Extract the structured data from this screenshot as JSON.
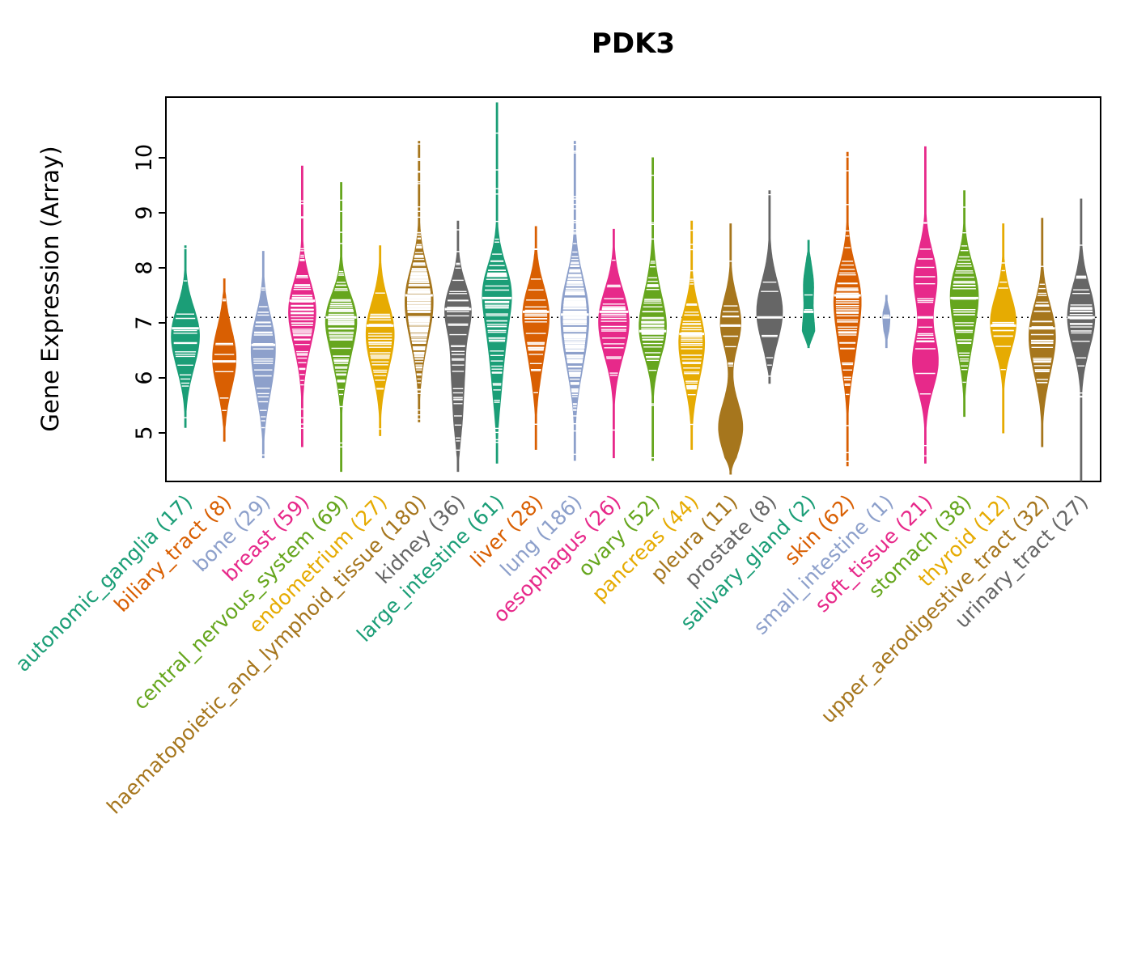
{
  "title": "PDK3",
  "y_axis": {
    "label": "Gene Expression (Array)",
    "ticks": [
      5,
      6,
      7,
      8,
      9,
      10
    ]
  },
  "chart_data": {
    "type": "violin",
    "title": "PDK3",
    "ylabel": "Gene Expression (Array)",
    "ylim": [
      4.1,
      11.1
    ],
    "yticks": [
      5,
      6,
      7,
      8,
      9,
      10
    ],
    "grid": false,
    "background": "#FFFFFF",
    "axis_color": "#000000",
    "data_line_color": "#FFFFFF",
    "reference_line": {
      "value": 7.1,
      "style": "dotted"
    },
    "palette": [
      "#1B9E77",
      "#D95F02",
      "#8DA0CB",
      "#E7298A",
      "#66A61E",
      "#E6AB02",
      "#A6761D",
      "#666666"
    ],
    "groups": [
      {
        "label": "autonomic_ganglia",
        "n": 17,
        "color": "#1B9E77",
        "min": 5.1,
        "max": 8.4,
        "median": 6.9,
        "bw": 0.45,
        "width": 0.72,
        "modes": [
          {
            "v": 6.9,
            "w": 1
          },
          {
            "v": 6.3,
            "w": 0.5
          }
        ]
      },
      {
        "label": "biliary_tract",
        "n": 8,
        "color": "#D95F02",
        "min": 4.85,
        "max": 7.8,
        "median": 6.3,
        "bw": 0.55,
        "width": 0.6,
        "modes": [
          {
            "v": 6.35,
            "w": 1
          }
        ]
      },
      {
        "label": "bone",
        "n": 29,
        "color": "#8DA0CB",
        "min": 4.55,
        "max": 8.3,
        "median": 6.6,
        "bw": 0.5,
        "width": 0.62,
        "modes": [
          {
            "v": 6.7,
            "w": 1
          },
          {
            "v": 5.9,
            "w": 0.6
          }
        ]
      },
      {
        "label": "breast",
        "n": 59,
        "color": "#E7298A",
        "min": 4.75,
        "max": 9.85,
        "median": 7.4,
        "bw": 0.5,
        "width": 0.7,
        "modes": [
          {
            "v": 7.3,
            "w": 1
          },
          {
            "v": 6.6,
            "w": 0.35
          }
        ]
      },
      {
        "label": "central_nervous_system",
        "n": 69,
        "color": "#66A61E",
        "min": 4.3,
        "max": 9.55,
        "median": 7.1,
        "bw": 0.45,
        "width": 0.8,
        "modes": [
          {
            "v": 7.1,
            "w": 1
          },
          {
            "v": 6.3,
            "w": 0.4
          }
        ]
      },
      {
        "label": "endometrium",
        "n": 27,
        "color": "#E6AB02",
        "min": 4.95,
        "max": 8.4,
        "median": 6.95,
        "bw": 0.5,
        "width": 0.72,
        "modes": [
          {
            "v": 6.95,
            "w": 1
          },
          {
            "v": 6.3,
            "w": 0.5
          }
        ]
      },
      {
        "label": "haematopoietic_and_lymphoid_tissue",
        "n": 180,
        "color": "#A6761D",
        "min": 5.2,
        "max": 10.3,
        "median": 7.5,
        "bw": 0.55,
        "width": 0.72,
        "modes": [
          {
            "v": 7.5,
            "w": 1
          },
          {
            "v": 6.7,
            "w": 0.4
          }
        ]
      },
      {
        "label": "kidney",
        "n": 36,
        "color": "#666666",
        "min": 4.3,
        "max": 8.85,
        "median": 7.25,
        "bw": 0.45,
        "width": 0.68,
        "modes": [
          {
            "v": 7.25,
            "w": 1
          },
          {
            "v": 6.2,
            "w": 0.45
          },
          {
            "v": 5.3,
            "w": 0.3
          }
        ]
      },
      {
        "label": "large_intestine",
        "n": 61,
        "color": "#1B9E77",
        "min": 4.45,
        "max": 11.0,
        "median": 7.45,
        "bw": 0.5,
        "width": 0.75,
        "modes": [
          {
            "v": 7.6,
            "w": 1
          },
          {
            "v": 6.7,
            "w": 0.5
          },
          {
            "v": 5.8,
            "w": 0.25
          }
        ]
      },
      {
        "label": "liver",
        "n": 28,
        "color": "#D95F02",
        "min": 4.7,
        "max": 8.75,
        "median": 7.2,
        "bw": 0.5,
        "width": 0.68,
        "modes": [
          {
            "v": 7.2,
            "w": 1
          },
          {
            "v": 6.3,
            "w": 0.4
          }
        ]
      },
      {
        "label": "lung",
        "n": 186,
        "color": "#8DA0CB",
        "min": 4.5,
        "max": 10.3,
        "median": 7.15,
        "bw": 0.6,
        "width": 0.72,
        "modes": [
          {
            "v": 7.3,
            "w": 1
          },
          {
            "v": 6.4,
            "w": 0.55
          }
        ]
      },
      {
        "label": "oesophagus",
        "n": 26,
        "color": "#E7298A",
        "min": 4.55,
        "max": 8.7,
        "median": 7.2,
        "bw": 0.5,
        "width": 0.78,
        "modes": [
          {
            "v": 7.2,
            "w": 1
          },
          {
            "v": 6.6,
            "w": 0.6
          }
        ]
      },
      {
        "label": "ovary",
        "n": 52,
        "color": "#66A61E",
        "min": 4.5,
        "max": 10.0,
        "median": 6.85,
        "bw": 0.5,
        "width": 0.7,
        "modes": [
          {
            "v": 6.85,
            "w": 1
          },
          {
            "v": 7.6,
            "w": 0.3
          }
        ]
      },
      {
        "label": "pancreas",
        "n": 44,
        "color": "#E6AB02",
        "min": 4.7,
        "max": 8.85,
        "median": 6.8,
        "bw": 0.5,
        "width": 0.66,
        "modes": [
          {
            "v": 6.8,
            "w": 1
          },
          {
            "v": 6.1,
            "w": 0.5
          }
        ]
      },
      {
        "label": "pleura",
        "n": 11,
        "color": "#A6761D",
        "min": 4.25,
        "max": 8.8,
        "median": 6.95,
        "bw": 0.45,
        "width": 0.62,
        "modes": [
          {
            "v": 7.0,
            "w": 0.85
          },
          {
            "v": 5.1,
            "w": 1
          }
        ]
      },
      {
        "label": "prostate",
        "n": 8,
        "color": "#666666",
        "min": 5.9,
        "max": 9.4,
        "median": 7.1,
        "bw": 0.55,
        "width": 0.66,
        "modes": [
          {
            "v": 7.2,
            "w": 1
          }
        ]
      },
      {
        "label": "salivary_gland",
        "n": 2,
        "color": "#1B9E77",
        "min": 6.55,
        "max": 8.5,
        "median": 7.2,
        "bw": 0.35,
        "width": 0.32,
        "modes": [
          {
            "v": 6.8,
            "w": 1
          },
          {
            "v": 7.7,
            "w": 0.8
          }
        ]
      },
      {
        "label": "skin",
        "n": 62,
        "color": "#D95F02",
        "min": 4.4,
        "max": 10.1,
        "median": 7.5,
        "bw": 0.55,
        "width": 0.7,
        "modes": [
          {
            "v": 7.5,
            "w": 1
          },
          {
            "v": 6.5,
            "w": 0.5
          }
        ]
      },
      {
        "label": "small_intestine",
        "n": 1,
        "color": "#8DA0CB",
        "min": 6.55,
        "max": 7.5,
        "median": 7.1,
        "bw": 0.3,
        "width": 0.18,
        "modes": [
          {
            "v": 7.1,
            "w": 1
          }
        ]
      },
      {
        "label": "soft_tissue",
        "n": 21,
        "color": "#E7298A",
        "min": 4.45,
        "max": 10.2,
        "median": 7.1,
        "bw": 0.5,
        "width": 0.66,
        "modes": [
          {
            "v": 7.8,
            "w": 0.9
          },
          {
            "v": 6.3,
            "w": 1
          }
        ]
      },
      {
        "label": "stomach",
        "n": 38,
        "color": "#66A61E",
        "min": 5.3,
        "max": 9.4,
        "median": 7.45,
        "bw": 0.5,
        "width": 0.72,
        "modes": [
          {
            "v": 7.6,
            "w": 1
          },
          {
            "v": 6.7,
            "w": 0.5
          }
        ]
      },
      {
        "label": "thyroid",
        "n": 12,
        "color": "#E6AB02",
        "min": 5.0,
        "max": 8.8,
        "median": 6.95,
        "bw": 0.5,
        "width": 0.66,
        "modes": [
          {
            "v": 7.0,
            "w": 1
          }
        ]
      },
      {
        "label": "upper_aerodigestive_tract",
        "n": 32,
        "color": "#A6761D",
        "min": 4.75,
        "max": 8.9,
        "median": 6.9,
        "bw": 0.5,
        "width": 0.68,
        "modes": [
          {
            "v": 6.9,
            "w": 1
          },
          {
            "v": 6.2,
            "w": 0.5
          }
        ]
      },
      {
        "label": "urinary_tract",
        "n": 27,
        "color": "#666666",
        "min": 4.1,
        "max": 9.25,
        "median": 7.1,
        "bw": 0.5,
        "width": 0.7,
        "modes": [
          {
            "v": 7.3,
            "w": 1
          },
          {
            "v": 6.8,
            "w": 0.7
          }
        ]
      }
    ]
  }
}
